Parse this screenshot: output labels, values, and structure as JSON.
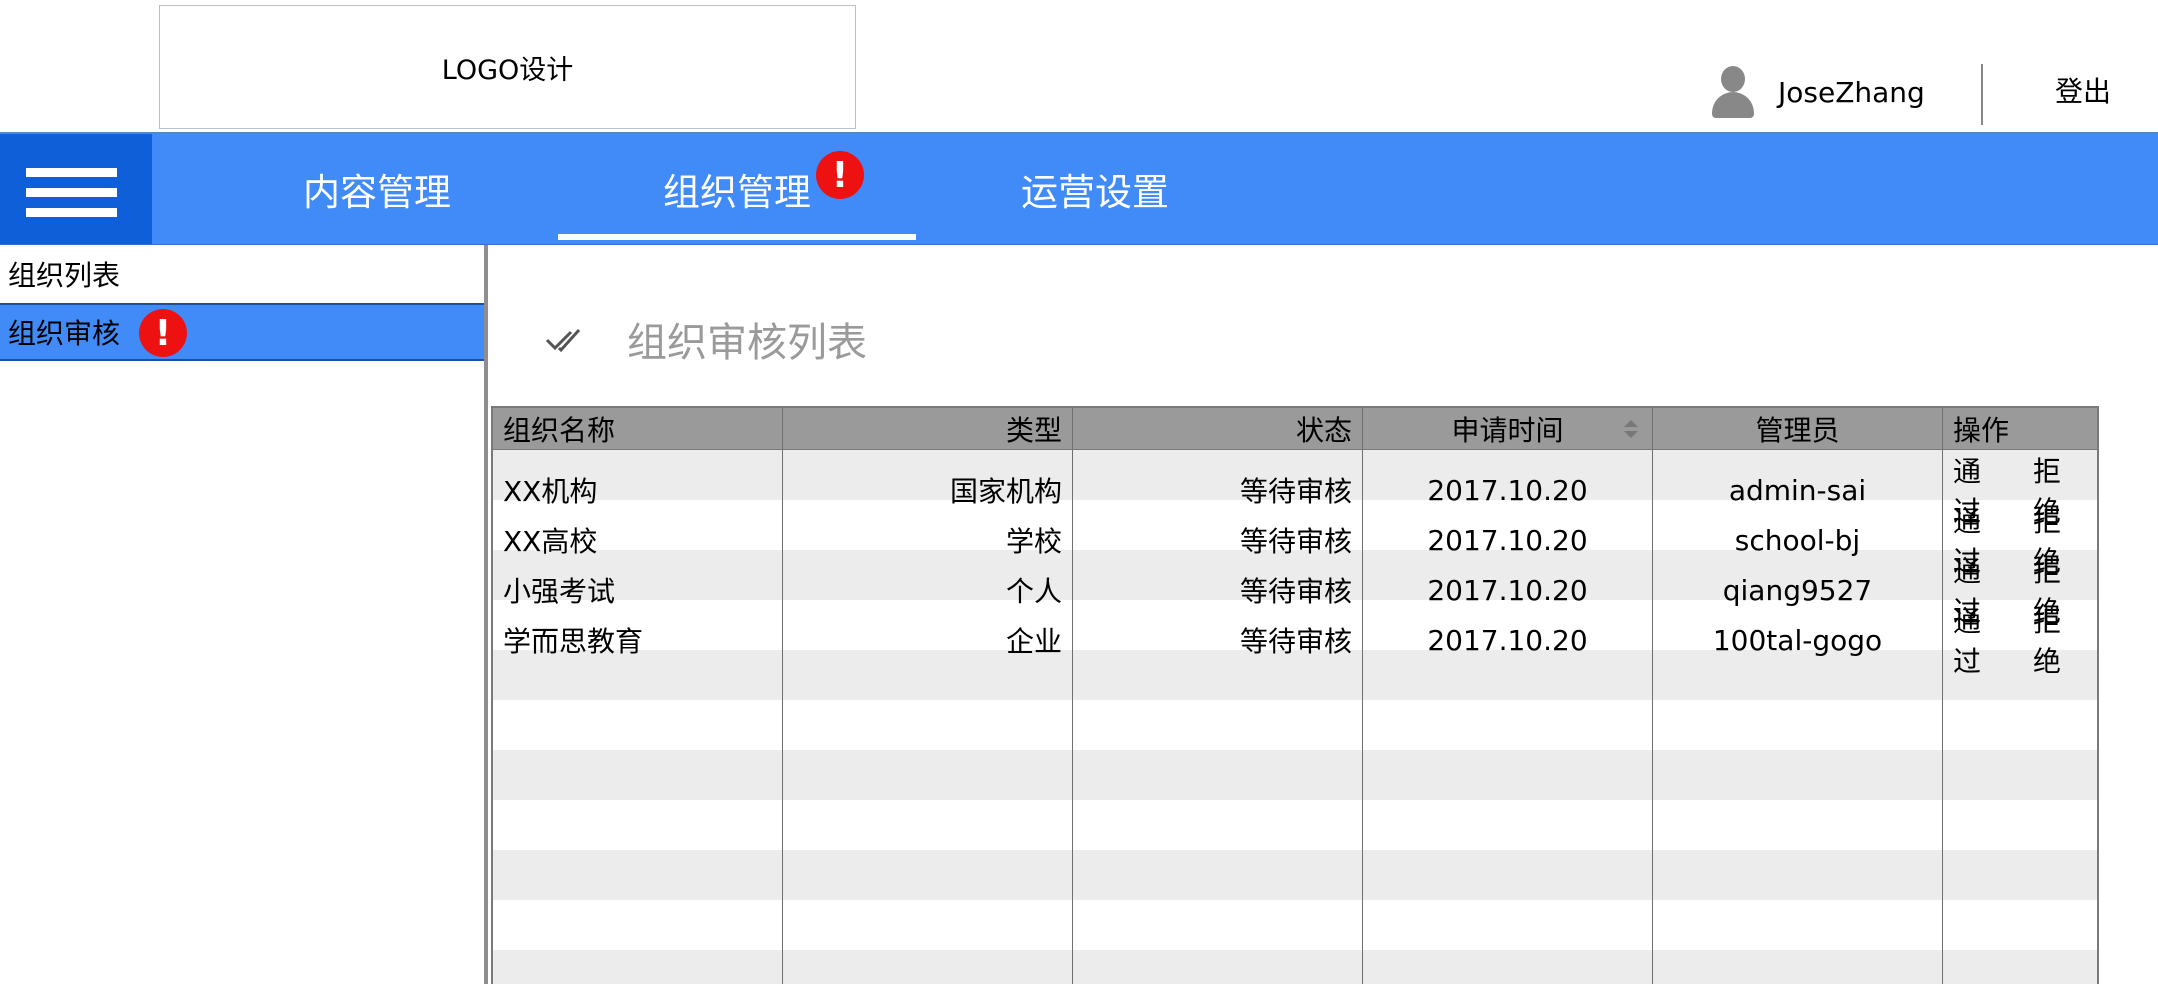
{
  "header": {
    "logo_text": "LOGO设计",
    "username": "JoseZhang",
    "logout_label": "登出"
  },
  "nav": {
    "items": [
      {
        "label": "内容管理"
      },
      {
        "label": "组织管理",
        "active": true,
        "alert": "!"
      },
      {
        "label": "运营设置"
      }
    ]
  },
  "sidebar": {
    "items": [
      {
        "label": "组织列表"
      },
      {
        "label": "组织审核",
        "active": true,
        "alert": "!"
      }
    ]
  },
  "main": {
    "title": "组织审核列表",
    "table": {
      "columns": [
        "组织名称",
        "类型",
        "状态",
        "申请时间",
        "管理员",
        "操作"
      ],
      "rows": [
        {
          "name": "XX机构",
          "type": "国家机构",
          "status": "等待审核",
          "time": "2017.10.20",
          "admin": "admin-sai",
          "approve": "通过",
          "reject": "拒绝"
        },
        {
          "name": "XX高校",
          "type": "学校",
          "status": "等待审核",
          "time": "2017.10.20",
          "admin": "school-bj",
          "approve": "通过",
          "reject": "拒绝"
        },
        {
          "name": "小强考试",
          "type": "个人",
          "status": "等待审核",
          "time": "2017.10.20",
          "admin": "qiang9527",
          "approve": "通过",
          "reject": "拒绝"
        },
        {
          "name": "学而思教育",
          "type": "企业",
          "status": "等待审核",
          "time": "2017.10.20",
          "admin": "100tal-gogo",
          "approve": "通过",
          "reject": "拒绝"
        }
      ]
    }
  },
  "icons": {
    "menu": "hamburger-icon",
    "avatar": "user-icon",
    "check": "double-check-icon",
    "sort": "sort-icon",
    "alert": "exclamation-icon"
  },
  "colors": {
    "primary": "#418bf9",
    "menu_bg": "#0e5fd8",
    "alert": "#ee1111",
    "table_header": "#9a9a9a",
    "row_alt": "#ececec"
  }
}
